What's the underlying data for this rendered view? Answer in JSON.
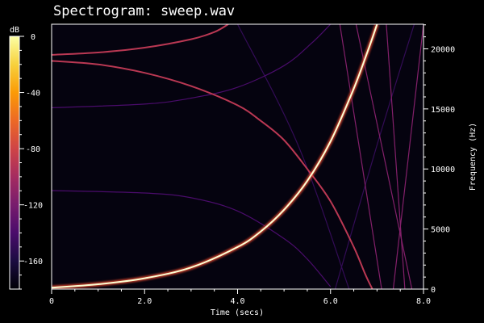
{
  "chart_data": {
    "type": "heatmap",
    "title": "Spectrogram: sweep.wav",
    "xlabel": "Time (secs)",
    "ylabel": "Frequency (Hz)",
    "colorbar_label": "dB",
    "xlim": [
      0,
      8.0
    ],
    "ylim": [
      0,
      22050
    ],
    "colorbar_range": [
      -180,
      0
    ],
    "x_ticks": [
      "0",
      "2.0",
      "4.0",
      "6.0",
      "8.0"
    ],
    "y_ticks": [
      "0",
      "5000",
      "10000",
      "15000",
      "20000"
    ],
    "colorbar_ticks": [
      "0",
      "-40",
      "-80",
      "-120",
      "-160"
    ],
    "colormap": [
      "#000004",
      "#1b0c41",
      "#4a0c6b",
      "#781c6d",
      "#a52c60",
      "#cf4446",
      "#ed6925",
      "#fb9b06",
      "#f7d13d",
      "#fcffa4"
    ],
    "series": [
      {
        "role": "fundamental",
        "level_db": 0,
        "points": [
          [
            0,
            120
          ],
          [
            1,
            400
          ],
          [
            2,
            900
          ],
          [
            3,
            1800
          ],
          [
            4,
            3500
          ],
          [
            4.5,
            4800
          ],
          [
            5,
            6600
          ],
          [
            5.5,
            9000
          ],
          [
            6,
            12300
          ],
          [
            6.5,
            16700
          ],
          [
            6.8,
            19800
          ],
          [
            7.0,
            22050
          ]
        ]
      },
      {
        "role": "upper-arc",
        "level_db": -90,
        "points": [
          [
            0,
            19500
          ],
          [
            1,
            19700
          ],
          [
            2,
            20100
          ],
          [
            3,
            20800
          ],
          [
            3.5,
            21400
          ],
          [
            3.8,
            22050
          ]
        ]
      },
      {
        "role": "mirror-alias",
        "level_db": -90,
        "points": [
          [
            0,
            19000
          ],
          [
            1,
            18700
          ],
          [
            2,
            18000
          ],
          [
            3,
            16900
          ],
          [
            4,
            15300
          ],
          [
            4.5,
            14000
          ],
          [
            5,
            12400
          ],
          [
            5.5,
            10000
          ],
          [
            6,
            7300
          ],
          [
            6.5,
            3500
          ],
          [
            6.75,
            1200
          ],
          [
            6.9,
            0
          ]
        ]
      },
      {
        "role": "aliased-harmonic",
        "level_db": -115,
        "points": [
          [
            6.2,
            22050
          ],
          [
            7.1,
            0
          ]
        ]
      },
      {
        "role": "aliased-harmonic",
        "level_db": -115,
        "points": [
          [
            6.55,
            22050
          ],
          [
            7.75,
            0
          ]
        ]
      },
      {
        "role": "aliased-harmonic",
        "level_db": -115,
        "points": [
          [
            7.2,
            22050
          ],
          [
            7.6,
            0
          ]
        ]
      },
      {
        "role": "aliased-harmonic",
        "level_db": -115,
        "points": [
          [
            8.0,
            22050
          ],
          [
            7.35,
            0
          ]
        ]
      },
      {
        "role": "aliased-harmonic",
        "level_db": -140,
        "points": [
          [
            0,
            8200
          ],
          [
            2,
            8000
          ],
          [
            3,
            7600
          ],
          [
            4,
            6500
          ],
          [
            5,
            4200
          ],
          [
            5.5,
            2500
          ],
          [
            6,
            200
          ]
        ]
      },
      {
        "role": "aliased-harmonic",
        "level_db": -140,
        "points": [
          [
            0,
            15100
          ],
          [
            2,
            15400
          ],
          [
            3,
            15900
          ],
          [
            4,
            16800
          ],
          [
            5,
            18600
          ],
          [
            5.6,
            20500
          ],
          [
            6,
            22050
          ]
        ]
      },
      {
        "role": "aliased-harmonic",
        "level_db": -150,
        "points": [
          [
            4.0,
            22050
          ],
          [
            5.3,
            12000
          ],
          [
            6.4,
            0
          ]
        ]
      },
      {
        "role": "aliased-harmonic",
        "level_db": -150,
        "points": [
          [
            6.1,
            0
          ],
          [
            7.0,
            12000
          ],
          [
            7.8,
            22050
          ]
        ]
      }
    ]
  }
}
